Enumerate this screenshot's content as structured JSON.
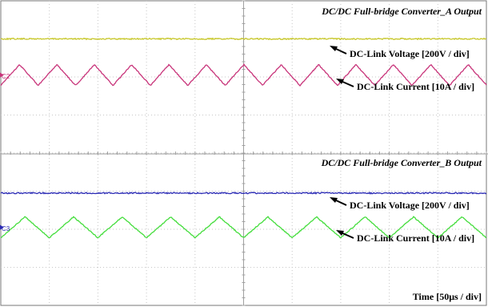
{
  "chart_data": [
    {
      "type": "line",
      "panel": "A",
      "title": "DC/DC Full-bridge Converter_A Output",
      "channel_marker": "C2",
      "grid": true,
      "series": [
        {
          "name": "DC-Link Voltage [200V / div]",
          "color": "#c8c82a",
          "shape": "flat-noisy",
          "level_div": -3.0
        },
        {
          "name": "DC-Link Current [10A / div]",
          "color": "#c8347a",
          "shape": "triangle",
          "ripple_pp_div": 0.55,
          "period_div": 0.77,
          "level_div": -2.05
        }
      ]
    },
    {
      "type": "line",
      "panel": "B",
      "title": "DC/DC Full-bridge Converter_B Output",
      "channel_marker": "C3",
      "grid": true,
      "series": [
        {
          "name": "DC-Link Voltage [200V / div]",
          "color": "#2a2ab4",
          "shape": "flat-noisy",
          "level_div": 1.05
        },
        {
          "name": "DC-Link Current [10A / div]",
          "color": "#44dd3c",
          "shape": "triangle",
          "ripple_pp_div": 0.55,
          "period_div": 1.0,
          "level_div": 1.95
        }
      ]
    }
  ],
  "timebase_label": "Time [50μs / div]",
  "colors": {
    "grid": "#c6c6c6",
    "frame": "#777777",
    "arrow": "#000000"
  }
}
